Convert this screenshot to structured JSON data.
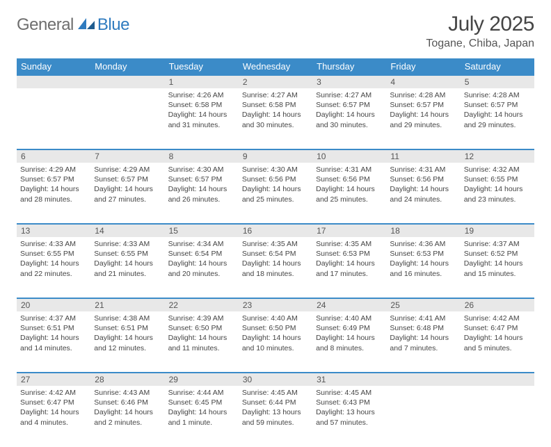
{
  "logo": {
    "part1": "General",
    "part2": "Blue"
  },
  "title": "July 2025",
  "location": "Togane, Chiba, Japan",
  "colors": {
    "header_bg": "#3b8bc8",
    "header_text": "#ffffff",
    "daynum_bg": "#e8e8e8",
    "border_top": "#3b8bc8",
    "body_text": "#444444",
    "title_text": "#454545",
    "logo_gray": "#6e6e6e",
    "logo_blue": "#2f7bbf"
  },
  "weekdays": [
    "Sunday",
    "Monday",
    "Tuesday",
    "Wednesday",
    "Thursday",
    "Friday",
    "Saturday"
  ],
  "weeks": [
    [
      null,
      null,
      {
        "n": "1",
        "sr": "4:26 AM",
        "ss": "6:58 PM",
        "dl": "14 hours and 31 minutes."
      },
      {
        "n": "2",
        "sr": "4:27 AM",
        "ss": "6:58 PM",
        "dl": "14 hours and 30 minutes."
      },
      {
        "n": "3",
        "sr": "4:27 AM",
        "ss": "6:57 PM",
        "dl": "14 hours and 30 minutes."
      },
      {
        "n": "4",
        "sr": "4:28 AM",
        "ss": "6:57 PM",
        "dl": "14 hours and 29 minutes."
      },
      {
        "n": "5",
        "sr": "4:28 AM",
        "ss": "6:57 PM",
        "dl": "14 hours and 29 minutes."
      }
    ],
    [
      {
        "n": "6",
        "sr": "4:29 AM",
        "ss": "6:57 PM",
        "dl": "14 hours and 28 minutes."
      },
      {
        "n": "7",
        "sr": "4:29 AM",
        "ss": "6:57 PM",
        "dl": "14 hours and 27 minutes."
      },
      {
        "n": "8",
        "sr": "4:30 AM",
        "ss": "6:57 PM",
        "dl": "14 hours and 26 minutes."
      },
      {
        "n": "9",
        "sr": "4:30 AM",
        "ss": "6:56 PM",
        "dl": "14 hours and 25 minutes."
      },
      {
        "n": "10",
        "sr": "4:31 AM",
        "ss": "6:56 PM",
        "dl": "14 hours and 25 minutes."
      },
      {
        "n": "11",
        "sr": "4:31 AM",
        "ss": "6:56 PM",
        "dl": "14 hours and 24 minutes."
      },
      {
        "n": "12",
        "sr": "4:32 AM",
        "ss": "6:55 PM",
        "dl": "14 hours and 23 minutes."
      }
    ],
    [
      {
        "n": "13",
        "sr": "4:33 AM",
        "ss": "6:55 PM",
        "dl": "14 hours and 22 minutes."
      },
      {
        "n": "14",
        "sr": "4:33 AM",
        "ss": "6:55 PM",
        "dl": "14 hours and 21 minutes."
      },
      {
        "n": "15",
        "sr": "4:34 AM",
        "ss": "6:54 PM",
        "dl": "14 hours and 20 minutes."
      },
      {
        "n": "16",
        "sr": "4:35 AM",
        "ss": "6:54 PM",
        "dl": "14 hours and 18 minutes."
      },
      {
        "n": "17",
        "sr": "4:35 AM",
        "ss": "6:53 PM",
        "dl": "14 hours and 17 minutes."
      },
      {
        "n": "18",
        "sr": "4:36 AM",
        "ss": "6:53 PM",
        "dl": "14 hours and 16 minutes."
      },
      {
        "n": "19",
        "sr": "4:37 AM",
        "ss": "6:52 PM",
        "dl": "14 hours and 15 minutes."
      }
    ],
    [
      {
        "n": "20",
        "sr": "4:37 AM",
        "ss": "6:51 PM",
        "dl": "14 hours and 14 minutes."
      },
      {
        "n": "21",
        "sr": "4:38 AM",
        "ss": "6:51 PM",
        "dl": "14 hours and 12 minutes."
      },
      {
        "n": "22",
        "sr": "4:39 AM",
        "ss": "6:50 PM",
        "dl": "14 hours and 11 minutes."
      },
      {
        "n": "23",
        "sr": "4:40 AM",
        "ss": "6:50 PM",
        "dl": "14 hours and 10 minutes."
      },
      {
        "n": "24",
        "sr": "4:40 AM",
        "ss": "6:49 PM",
        "dl": "14 hours and 8 minutes."
      },
      {
        "n": "25",
        "sr": "4:41 AM",
        "ss": "6:48 PM",
        "dl": "14 hours and 7 minutes."
      },
      {
        "n": "26",
        "sr": "4:42 AM",
        "ss": "6:47 PM",
        "dl": "14 hours and 5 minutes."
      }
    ],
    [
      {
        "n": "27",
        "sr": "4:42 AM",
        "ss": "6:47 PM",
        "dl": "14 hours and 4 minutes."
      },
      {
        "n": "28",
        "sr": "4:43 AM",
        "ss": "6:46 PM",
        "dl": "14 hours and 2 minutes."
      },
      {
        "n": "29",
        "sr": "4:44 AM",
        "ss": "6:45 PM",
        "dl": "14 hours and 1 minute."
      },
      {
        "n": "30",
        "sr": "4:45 AM",
        "ss": "6:44 PM",
        "dl": "13 hours and 59 minutes."
      },
      {
        "n": "31",
        "sr": "4:45 AM",
        "ss": "6:43 PM",
        "dl": "13 hours and 57 minutes."
      },
      null,
      null
    ]
  ],
  "labels": {
    "sunrise": "Sunrise:",
    "sunset": "Sunset:",
    "daylight": "Daylight:"
  }
}
